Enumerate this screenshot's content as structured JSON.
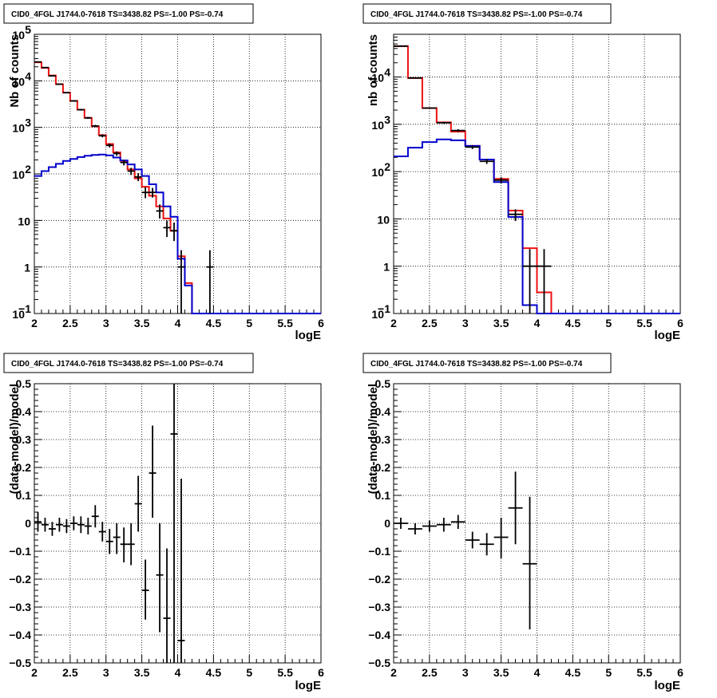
{
  "chart_data": [
    {
      "type": "line",
      "title": "CID0_4FGL J1744.0-7618 TS=3438.82 PS=-1.00 PS=-0.74",
      "xlabel": "logE",
      "ylabel": "Nb of counts",
      "xlim": [
        2,
        6
      ],
      "ylim": [
        0.1,
        100000
      ],
      "yscale": "log",
      "grid": true,
      "x_ticks": [
        "2",
        "2.5",
        "3",
        "3.5",
        "4",
        "4.5",
        "5",
        "5.5",
        "6"
      ],
      "y_ticks": [
        {
          "v": 0.1,
          "label": "10",
          "sup": "−1"
        },
        {
          "v": 1,
          "label": "1",
          "sup": ""
        },
        {
          "v": 10,
          "label": "10",
          "sup": ""
        },
        {
          "v": 100,
          "label": "10",
          "sup": "2"
        },
        {
          "v": 1000,
          "label": "10",
          "sup": "3"
        },
        {
          "v": 10000,
          "label": "10",
          "sup": "4"
        },
        {
          "v": 100000,
          "label": "10",
          "sup": "5"
        }
      ],
      "bin_edges": [
        2.0,
        2.1,
        2.2,
        2.3,
        2.4,
        2.5,
        2.6,
        2.7,
        2.8,
        2.9,
        3.0,
        3.1,
        3.2,
        3.3,
        3.4,
        3.5,
        3.6,
        3.7,
        3.8,
        3.9,
        4.0,
        4.1,
        4.2,
        4.3,
        4.4,
        4.5,
        4.6,
        4.7,
        4.8,
        4.9,
        5.0,
        5.1,
        5.2,
        5.3,
        5.4,
        5.5,
        5.6,
        5.7,
        5.8,
        5.9,
        6.0
      ],
      "series": [
        {
          "color": "#ee1111",
          "values": [
            25000,
            19000,
            13000,
            8500,
            5600,
            3700,
            2400,
            1600,
            1050,
            680,
            440,
            290,
            190,
            125,
            80,
            53,
            34,
            20,
            11,
            6,
            1.7,
            0.45,
            0.1,
            0.1,
            0.1,
            0.1,
            0.1,
            0.1,
            0.1,
            0.1,
            0.1,
            0.1,
            0.1,
            0.1,
            0.1,
            0.1,
            0.1,
            0.1,
            0.1,
            0.1
          ]
        },
        {
          "color": "#0000cc",
          "values": [
            90,
            115,
            140,
            165,
            190,
            210,
            230,
            245,
            255,
            260,
            250,
            225,
            195,
            160,
            125,
            90,
            60,
            40,
            20,
            12,
            1.5,
            0.4,
            0.1,
            0.1,
            0.1,
            0.1,
            0.1,
            0.1,
            0.1,
            0.1,
            0.1,
            0.1,
            0.1,
            0.1,
            0.1,
            0.1,
            0.1,
            0.1,
            0.1,
            0.1
          ]
        }
      ],
      "points": [
        {
          "x": 2.05,
          "y": 25500,
          "ylo": 25000,
          "yhi": 26000
        },
        {
          "x": 2.15,
          "y": 19300,
          "ylo": 18900,
          "yhi": 19700
        },
        {
          "x": 2.25,
          "y": 12800,
          "ylo": 12500,
          "yhi": 13100
        },
        {
          "x": 2.35,
          "y": 8450,
          "ylo": 8250,
          "yhi": 8650
        },
        {
          "x": 2.45,
          "y": 5550,
          "ylo": 5400,
          "yhi": 5700
        },
        {
          "x": 2.55,
          "y": 3700,
          "ylo": 3580,
          "yhi": 3820
        },
        {
          "x": 2.65,
          "y": 2390,
          "ylo": 2290,
          "yhi": 2490
        },
        {
          "x": 2.75,
          "y": 1600,
          "ylo": 1520,
          "yhi": 1680
        },
        {
          "x": 2.85,
          "y": 1070,
          "ylo": 1010,
          "yhi": 1130
        },
        {
          "x": 2.95,
          "y": 660,
          "ylo": 610,
          "yhi": 710
        },
        {
          "x": 3.05,
          "y": 410,
          "ylo": 370,
          "yhi": 450
        },
        {
          "x": 3.15,
          "y": 275,
          "ylo": 245,
          "yhi": 305
        },
        {
          "x": 3.25,
          "y": 176,
          "ylo": 152,
          "yhi": 200
        },
        {
          "x": 3.35,
          "y": 115,
          "ylo": 95,
          "yhi": 135
        },
        {
          "x": 3.45,
          "y": 86,
          "ylo": 70,
          "yhi": 104
        },
        {
          "x": 3.55,
          "y": 40,
          "ylo": 30,
          "yhi": 52
        },
        {
          "x": 3.65,
          "y": 40,
          "ylo": 31,
          "yhi": 50
        },
        {
          "x": 3.75,
          "y": 16,
          "ylo": 11,
          "yhi": 22
        },
        {
          "x": 3.85,
          "y": 7,
          "ylo": 4.4,
          "yhi": 10
        },
        {
          "x": 3.95,
          "y": 6,
          "ylo": 3.6,
          "yhi": 9
        },
        {
          "x": 4.05,
          "y": 1,
          "ylo": 0.1,
          "yhi": 2.3
        },
        {
          "x": 4.45,
          "y": 1,
          "ylo": 0.1,
          "yhi": 2.3
        }
      ]
    },
    {
      "type": "line",
      "title": "CID0_4FGL J1744.0-7618 TS=3438.82 PS=-1.00 PS=-0.74",
      "xlabel": "logE",
      "ylabel": "nb of counts",
      "xlim": [
        2,
        6
      ],
      "ylim": [
        0.1,
        80000
      ],
      "yscale": "log",
      "grid": true,
      "x_ticks": [
        "2",
        "2.5",
        "3",
        "3.5",
        "4",
        "4.5",
        "5",
        "5.5",
        "6"
      ],
      "y_ticks": [
        {
          "v": 0.1,
          "label": "10",
          "sup": "−1"
        },
        {
          "v": 1,
          "label": "1",
          "sup": ""
        },
        {
          "v": 10,
          "label": "10",
          "sup": ""
        },
        {
          "v": 100,
          "label": "10",
          "sup": "2"
        },
        {
          "v": 1000,
          "label": "10",
          "sup": "3"
        },
        {
          "v": 10000,
          "label": "10",
          "sup": "4"
        }
      ],
      "bin_edges": [
        2.0,
        2.2,
        2.4,
        2.6,
        2.8,
        3.0,
        3.2,
        3.4,
        3.6,
        3.8,
        4.0,
        4.2,
        4.4,
        4.6,
        4.8,
        5.0,
        5.2,
        5.4,
        5.6,
        5.8,
        6.0
      ],
      "series": [
        {
          "color": "#ee1111",
          "values": [
            45000,
            9500,
            2200,
            1100,
            700,
            350,
            180,
            70,
            15,
            2.4,
            0.28,
            0.1,
            0.1,
            0.1,
            0.1,
            0.1,
            0.1,
            0.1,
            0.1,
            0.1
          ]
        },
        {
          "color": "#0000cc",
          "values": [
            210,
            320,
            420,
            480,
            460,
            350,
            180,
            60,
            11,
            0.15,
            0.1,
            0.1,
            0.1,
            0.1,
            0.1,
            0.1,
            0.1,
            0.1,
            0.1,
            0.1
          ]
        }
      ],
      "points": [
        {
          "x": 2.1,
          "y": 45000,
          "ylo": 44500,
          "yhi": 45500
        },
        {
          "x": 2.3,
          "y": 9550,
          "ylo": 9350,
          "yhi": 9750
        },
        {
          "x": 2.5,
          "y": 2200,
          "ylo": 2150,
          "yhi": 2250
        },
        {
          "x": 2.7,
          "y": 1080,
          "ylo": 1030,
          "yhi": 1130
        },
        {
          "x": 2.9,
          "y": 740,
          "ylo": 690,
          "yhi": 790
        },
        {
          "x": 3.1,
          "y": 330,
          "ylo": 300,
          "yhi": 360
        },
        {
          "x": 3.3,
          "y": 165,
          "ylo": 145,
          "yhi": 185
        },
        {
          "x": 3.5,
          "y": 66,
          "ylo": 56,
          "yhi": 76
        },
        {
          "x": 3.7,
          "y": 12.5,
          "ylo": 9,
          "yhi": 16
        },
        {
          "x": 3.9,
          "y": 1,
          "ylo": 0.1,
          "yhi": 2.3
        },
        {
          "x": 4.1,
          "y": 1,
          "ylo": 0.1,
          "yhi": 2.3
        }
      ]
    },
    {
      "type": "scatter",
      "title": "CID0_4FGL J1744.0-7618 TS=3438.82 PS=-1.00 PS=-0.74",
      "xlabel": "logE",
      "ylabel": "(data-model)/model",
      "xlim": [
        2,
        6
      ],
      "ylim": [
        -0.5,
        0.5
      ],
      "yscale": "linear",
      "grid": true,
      "x_ticks": [
        "2",
        "2.5",
        "3",
        "3.5",
        "4",
        "4.5",
        "5",
        "5.5",
        "6"
      ],
      "y_ticks": [
        "−0.5",
        "−0.4",
        "−0.3",
        "−0.2",
        "−0.1",
        "0",
        "0.1",
        "0.2",
        "0.3",
        "0.4",
        "0.5"
      ],
      "bin_width": 0.1,
      "points": [
        {
          "x": 2.05,
          "y": 0.005,
          "ylo": -0.03,
          "yhi": 0.04
        },
        {
          "x": 2.15,
          "y": -0.005,
          "ylo": -0.03,
          "yhi": 0.02
        },
        {
          "x": 2.25,
          "y": -0.02,
          "ylo": -0.045,
          "yhi": 0.005
        },
        {
          "x": 2.35,
          "y": -0.005,
          "ylo": -0.03,
          "yhi": 0.02
        },
        {
          "x": 2.45,
          "y": -0.01,
          "ylo": -0.035,
          "yhi": 0.015
        },
        {
          "x": 2.55,
          "y": 0.0,
          "ylo": -0.025,
          "yhi": 0.025
        },
        {
          "x": 2.65,
          "y": -0.005,
          "ylo": -0.035,
          "yhi": 0.025
        },
        {
          "x": 2.75,
          "y": -0.01,
          "ylo": -0.04,
          "yhi": 0.02
        },
        {
          "x": 2.85,
          "y": 0.025,
          "ylo": -0.015,
          "yhi": 0.065
        },
        {
          "x": 2.95,
          "y": -0.03,
          "ylo": -0.065,
          "yhi": 0.005
        },
        {
          "x": 3.05,
          "y": -0.065,
          "ylo": -0.11,
          "yhi": -0.02
        },
        {
          "x": 3.15,
          "y": -0.05,
          "ylo": -0.11,
          "yhi": 0.0
        },
        {
          "x": 3.25,
          "y": -0.075,
          "ylo": -0.14,
          "yhi": -0.015
        },
        {
          "x": 3.35,
          "y": -0.075,
          "ylo": -0.15,
          "yhi": 0.0
        },
        {
          "x": 3.45,
          "y": 0.07,
          "ylo": -0.03,
          "yhi": 0.17
        },
        {
          "x": 3.55,
          "y": -0.24,
          "ylo": -0.345,
          "yhi": -0.13
        },
        {
          "x": 3.65,
          "y": 0.18,
          "ylo": 0.02,
          "yhi": 0.35
        },
        {
          "x": 3.75,
          "y": -0.185,
          "ylo": -0.39,
          "yhi": 0.0
        },
        {
          "x": 3.85,
          "y": -0.34,
          "ylo": -0.5,
          "yhi": -0.09
        },
        {
          "x": 3.95,
          "y": 0.32,
          "ylo": -0.5,
          "yhi": 0.5
        },
        {
          "x": 4.05,
          "y": -0.42,
          "ylo": -0.5,
          "yhi": 0.16
        }
      ]
    },
    {
      "type": "scatter",
      "title": "CID0_4FGL J1744.0-7618 TS=3438.82 PS=-1.00 PS=-0.74",
      "xlabel": "logE",
      "ylabel": "(data-model)/model",
      "xlim": [
        2,
        6
      ],
      "ylim": [
        -0.5,
        0.5
      ],
      "yscale": "linear",
      "grid": true,
      "x_ticks": [
        "2",
        "2.5",
        "3",
        "3.5",
        "4",
        "4.5",
        "5",
        "5.5",
        "6"
      ],
      "y_ticks": [
        "−0.5",
        "−0.4",
        "−0.3",
        "−0.2",
        "−0.1",
        "0",
        "0.1",
        "0.2",
        "0.3",
        "0.4",
        "0.5"
      ],
      "bin_width": 0.2,
      "points": [
        {
          "x": 2.1,
          "y": 0.0,
          "ylo": -0.02,
          "yhi": 0.02
        },
        {
          "x": 2.3,
          "y": -0.02,
          "ylo": -0.04,
          "yhi": 0.0
        },
        {
          "x": 2.5,
          "y": -0.01,
          "ylo": -0.03,
          "yhi": 0.01
        },
        {
          "x": 2.7,
          "y": -0.005,
          "ylo": -0.03,
          "yhi": 0.02
        },
        {
          "x": 2.9,
          "y": 0.005,
          "ylo": -0.02,
          "yhi": 0.03
        },
        {
          "x": 3.1,
          "y": -0.06,
          "ylo": -0.09,
          "yhi": -0.03
        },
        {
          "x": 3.3,
          "y": -0.075,
          "ylo": -0.115,
          "yhi": -0.035
        },
        {
          "x": 3.5,
          "y": -0.05,
          "ylo": -0.125,
          "yhi": 0.02
        },
        {
          "x": 3.7,
          "y": 0.055,
          "ylo": -0.075,
          "yhi": 0.185
        },
        {
          "x": 3.9,
          "y": -0.145,
          "ylo": -0.38,
          "yhi": 0.095
        }
      ]
    }
  ]
}
